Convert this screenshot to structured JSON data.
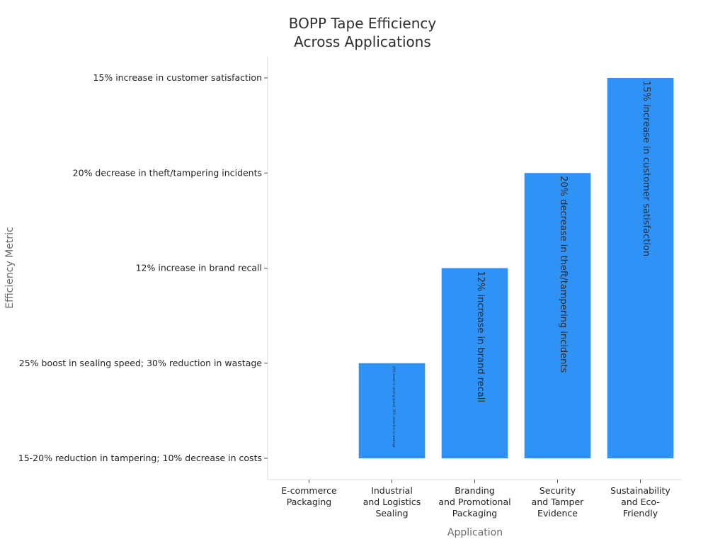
{
  "chart_data": {
    "type": "bar",
    "title": [
      "BOPP Tape Efficiency",
      "Across Applications"
    ],
    "xlabel": "Application",
    "ylabel": "Efficiency Metric",
    "categories": [
      [
        "E-commerce",
        "Packaging"
      ],
      [
        "Industrial",
        "and Logistics",
        "Sealing"
      ],
      [
        "Branding",
        "and Promotional",
        "Packaging"
      ],
      [
        "Security",
        "and Tamper",
        "Evidence"
      ],
      [
        "Sustainability",
        "and Eco-",
        "Friendly"
      ]
    ],
    "y_categories": [
      "15-20% reduction in tampering; 10% decrease in costs",
      "25% boost in sealing speed; 30% reduction in wastage",
      "12% increase in brand recall",
      "20% decrease in theft/tampering incidents",
      "15% increase in customer satisfaction"
    ],
    "values": [
      "15-20% reduction in tampering; 10% decrease in costs",
      "25% boost in sealing speed; 30% reduction in wastage",
      "12% increase in brand recall",
      "20% decrease in theft/tampering incidents",
      "15% increase in customer satisfaction"
    ],
    "bar_color": "#2f92f7",
    "grid": false,
    "legend": "none"
  }
}
